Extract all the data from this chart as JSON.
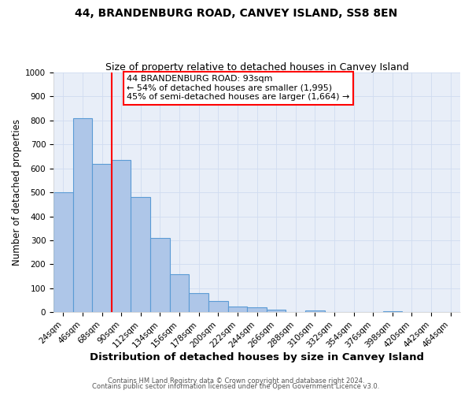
{
  "title": "44, BRANDENBURG ROAD, CANVEY ISLAND, SS8 8EN",
  "subtitle": "Size of property relative to detached houses in Canvey Island",
  "xlabel": "Distribution of detached houses by size in Canvey Island",
  "ylabel": "Number of detached properties",
  "bin_labels": [
    "24sqm",
    "46sqm",
    "68sqm",
    "90sqm",
    "112sqm",
    "134sqm",
    "156sqm",
    "178sqm",
    "200sqm",
    "222sqm",
    "244sqm",
    "266sqm",
    "288sqm",
    "310sqm",
    "332sqm",
    "354sqm",
    "376sqm",
    "398sqm",
    "420sqm",
    "442sqm",
    "464sqm"
  ],
  "bar_values": [
    500,
    810,
    620,
    635,
    480,
    310,
    160,
    80,
    48,
    25,
    20,
    12,
    0,
    8,
    0,
    0,
    0,
    5,
    0,
    0,
    0
  ],
  "bar_color": "#AEC6E8",
  "bar_edge_color": "#5B9BD5",
  "vline_color": "red",
  "vline_x_index": 3,
  "annotation_text": "44 BRANDENBURG ROAD: 93sqm\n← 54% of detached houses are smaller (1,995)\n45% of semi-detached houses are larger (1,664) →",
  "annotation_box_color": "white",
  "annotation_box_edge_color": "red",
  "ylim": [
    0,
    1000
  ],
  "yticks": [
    0,
    100,
    200,
    300,
    400,
    500,
    600,
    700,
    800,
    900,
    1000
  ],
  "grid_color": "#D0DCF0",
  "background_color": "#E8EEF8",
  "footer_line1": "Contains HM Land Registry data © Crown copyright and database right 2024.",
  "footer_line2": "Contains public sector information licensed under the Open Government Licence v3.0.",
  "title_fontsize": 10,
  "subtitle_fontsize": 9,
  "xlabel_fontsize": 9.5,
  "ylabel_fontsize": 8.5,
  "tick_fontsize": 7.5,
  "annotation_fontsize": 8,
  "footer_fontsize": 6
}
